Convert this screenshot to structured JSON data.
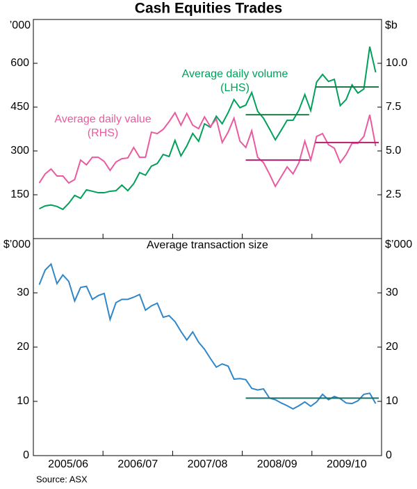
{
  "title": "Cash Equities Trades",
  "source": "Source: ASX",
  "chart_data": [
    {
      "type": "line",
      "y_unit": "’000",
      "y2_unit": "$b",
      "ylim": [
        0,
        750
      ],
      "yticks": [
        150,
        300,
        450,
        600
      ],
      "y2lim": [
        0,
        12.5
      ],
      "y2ticks": [
        {
          "value": 2.5,
          "label": "2.5"
        },
        {
          "value": 5,
          "label": "5.0"
        },
        7.5,
        {
          "value": 10,
          "label": "10.0"
        }
      ],
      "series": [
        {
          "name": "Average daily volume",
          "note": "(LHS)",
          "color": "#00a05a",
          "average_color": "#1f7a45",
          "values": [
            102,
            112,
            115,
            110,
            100,
            121,
            148,
            138,
            167,
            162,
            157,
            157,
            162,
            164,
            183,
            164,
            188,
            226,
            217,
            248,
            257,
            288,
            281,
            336,
            283,
            317,
            360,
            333,
            393,
            381,
            419,
            393,
            431,
            476,
            448,
            457,
            500,
            436,
            412,
            376,
            338,
            371,
            405,
            405,
            440,
            493,
            438,
            536,
            562,
            538,
            545,
            455,
            476,
            526,
            498,
            512,
            657,
            569
          ],
          "averages": [
            {
              "period": "2008/09",
              "value": 424
            },
            {
              "period": "2009/10",
              "value": 519
            }
          ]
        },
        {
          "name": "Average daily value",
          "note": "(RHS)",
          "axis": "y2",
          "color": "#ea5a9f",
          "average_color": "#b0206e",
          "values": [
            3.17,
            3.69,
            3.97,
            3.57,
            3.57,
            3.17,
            3.37,
            4.48,
            4.21,
            4.64,
            4.64,
            4.4,
            3.89,
            4.37,
            4.56,
            4.6,
            5.2,
            4.64,
            4.64,
            6.07,
            5.99,
            6.23,
            6.67,
            7.18,
            6.47,
            7.14,
            6.47,
            6.27,
            6.94,
            6.39,
            6.83,
            5.48,
            6.07,
            6.87,
            5.56,
            5.2,
            6.15,
            4.64,
            4.33,
            3.69,
            2.98,
            3.53,
            4.09,
            3.69,
            4.33,
            5.56,
            4.48,
            5.83,
            5.99,
            5.36,
            5.16,
            4.33,
            4.8,
            5.44,
            5.44,
            5.83,
            7.06,
            5.28
          ],
          "averages": [
            {
              "period": "2008/09",
              "value": 4.48
            },
            {
              "period": "2009/10",
              "value": 5.48
            }
          ]
        }
      ]
    },
    {
      "type": "line",
      "title": "Average transaction size",
      "y_unit": "$’000",
      "y2_unit": "$’000",
      "ylim": [
        0,
        40
      ],
      "yticks": [
        0,
        10,
        20,
        30
      ],
      "y2ticks": [
        0,
        10,
        20,
        30
      ],
      "x_labels": [
        "2005/06",
        "2006/07",
        "2007/08",
        "2008/09",
        "2009/10"
      ],
      "series": [
        {
          "color": "#2f86c8",
          "average_color": "#1a6e6a",
          "values": [
            31.5,
            34.2,
            35.3,
            31.7,
            33.3,
            32.1,
            28.5,
            31.0,
            31.2,
            28.8,
            29.5,
            29.9,
            25.1,
            28.2,
            28.8,
            28.8,
            29.2,
            29.7,
            26.8,
            27.6,
            28.1,
            25.5,
            25.8,
            24.7,
            22.9,
            21.3,
            22.8,
            20.9,
            19.6,
            17.9,
            16.3,
            16.9,
            16.5,
            14.1,
            14.2,
            14.0,
            12.4,
            12.1,
            12.3,
            10.6,
            10.3,
            9.7,
            9.2,
            8.6,
            9.2,
            9.9,
            9.1,
            9.9,
            11.3,
            10.3,
            10.9,
            10.5,
            9.7,
            9.6,
            10.1,
            11.3,
            11.5,
            9.6
          ],
          "averages": [
            {
              "period": "2008/09",
              "period_end": "2009/10",
              "value": 10.6
            }
          ]
        }
      ]
    }
  ]
}
